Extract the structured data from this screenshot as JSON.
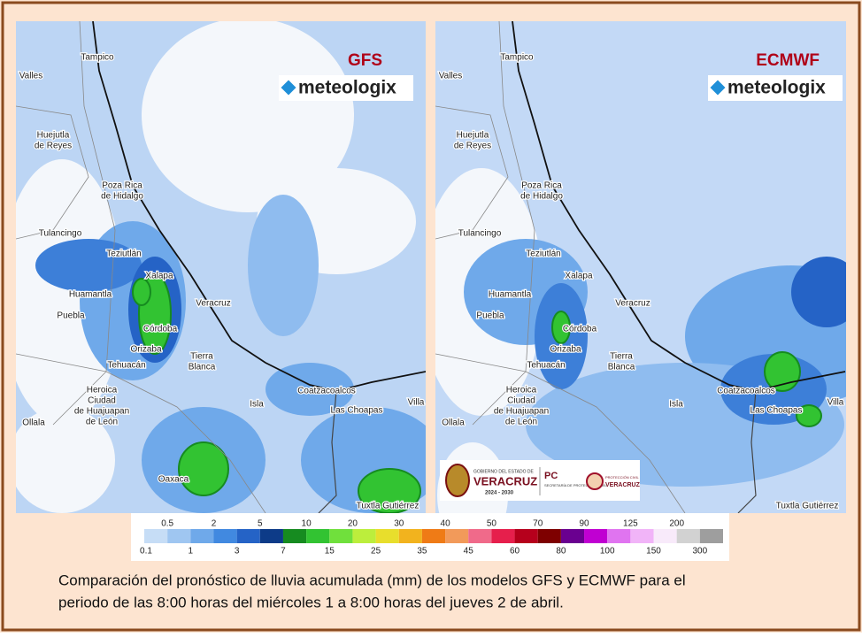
{
  "panels": [
    {
      "model": "GFS",
      "logo": "meteologix",
      "places": [
        [
          "Tampico"
        ],
        [
          "Valles"
        ],
        [
          "Huejutla",
          "de Reyes"
        ],
        [
          "Poza Rica",
          "de Hidalgo"
        ],
        [
          "Tulancingo"
        ],
        [
          "Teziutlán"
        ],
        [
          "Xalapa"
        ],
        [
          "Huamantla"
        ],
        [
          "Puebla"
        ],
        [
          "Veracruz"
        ],
        [
          "Córdoba"
        ],
        [
          "Orizaba"
        ],
        [
          "Tehuacán"
        ],
        [
          "Tierra",
          "Blanca"
        ],
        [
          "Heroica",
          "Ciudad",
          "de Huajuapan",
          "de León"
        ],
        [
          "Coatzacoalcos"
        ],
        [
          "Las Choapas"
        ],
        [
          "Isla"
        ],
        [
          "Villa"
        ],
        [
          "Ollala"
        ],
        [
          "Tuxtla Gutiérrez"
        ],
        [
          "Oaxaca"
        ]
      ]
    },
    {
      "model": "ECMWF",
      "logo": "meteologix",
      "places": [
        [
          "Tampico"
        ],
        [
          "Valles"
        ],
        [
          "Huejutla",
          "de Reyes"
        ],
        [
          "Poza Rica",
          "de Hidalgo"
        ],
        [
          "Tulancingo"
        ],
        [
          "Teziutlán"
        ],
        [
          "Xalapa"
        ],
        [
          "Huamantla"
        ],
        [
          "Puebla"
        ],
        [
          "Veracruz"
        ],
        [
          "Córdoba"
        ],
        [
          "Orizaba"
        ],
        [
          "Tehuacán"
        ],
        [
          "Tierra",
          "Blanca"
        ],
        [
          "Heroica",
          "Ciudad",
          "de Huajuapan",
          "de León"
        ],
        [
          "Coatzacoalcos"
        ],
        [
          "Las Choapas"
        ],
        [
          "Isla"
        ],
        [
          "Villa"
        ],
        [
          "Ollala"
        ],
        [
          "Tuxtla Gutiérrez"
        ]
      ]
    }
  ],
  "colorbar": {
    "boundaries": [
      0.1,
      0.5,
      1,
      2,
      3,
      5,
      7,
      10,
      15,
      20,
      25,
      30,
      35,
      40,
      45,
      50,
      60,
      70,
      80,
      90,
      100,
      125,
      150,
      200,
      300
    ],
    "colors": [
      "#c6ddf6",
      "#9fc6f1",
      "#6fa9ea",
      "#4189e0",
      "#2563c6",
      "#0d3b88",
      "#168b20",
      "#32c332",
      "#70e03c",
      "#bcee3c",
      "#e8de2c",
      "#f2b31e",
      "#ef7b16",
      "#f29a5a",
      "#f06a8a",
      "#e61f4c",
      "#b6001c",
      "#7e0000",
      "#6a0090",
      "#c000d2",
      "#e074f0",
      "#f1b4f8",
      "#f8eafa",
      "#d2d2d2",
      "#9e9e9e"
    ]
  },
  "veracruz_logo": {
    "line1": "GOBIERNO DEL ESTADO DE",
    "line2": "VERACRUZ",
    "line3": "2024 - 2030",
    "pc": "PC",
    "pc_sub": "SECRETARÍA DE PROTECCIÓN CIVIL",
    "pc2": "PROTECCIÓN CIVIL",
    "pc2_sub": "VERACRUZ"
  },
  "caption": [
    "Comparación del pronóstico de lluvia acumulada (mm) de los modelos GFS y ECMWF para el",
    "periodo de las 8:00 horas del miércoles 1 a 8:00 horas del jueves 2 de abril."
  ]
}
